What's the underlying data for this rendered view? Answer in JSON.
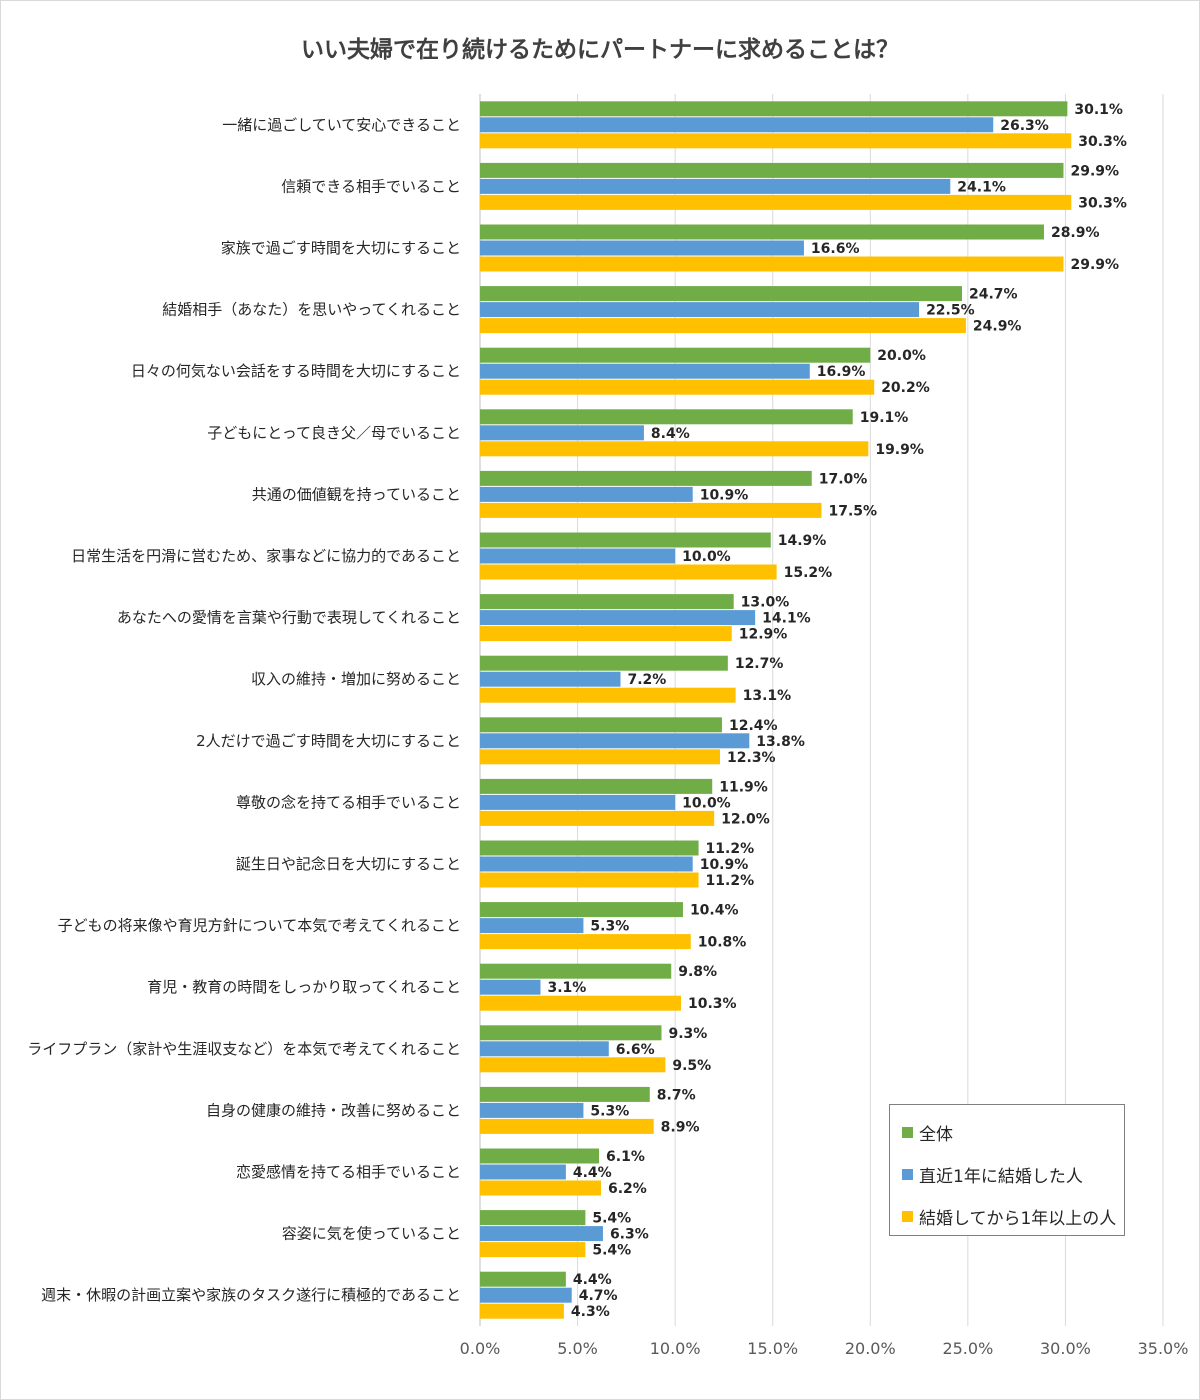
{
  "chart_data": {
    "type": "bar",
    "orientation": "horizontal",
    "title": "いい夫婦で在り続けるためにパートナーに求めることは？",
    "categories": [
      "一緒に過ごしていて安心できること",
      "信頼できる相手でいること",
      "家族で過ごす時間を大切にすること",
      "結婚相手（あなた）を思いやってくれること",
      "日々の何気ない会話をする時間を大切にすること",
      "子どもにとって良き父／母でいること",
      "共通の価値観を持っていること",
      "日常生活を円滑に営むため、家事などに協力的であること",
      "あなたへの愛情を言葉や行動で表現してくれること",
      "収入の維持・増加に努めること",
      "2人だけで過ごす時間を大切にすること",
      "尊敬の念を持てる相手でいること",
      "誕生日や記念日を大切にすること",
      "子どもの将来像や育児方針について本気で考えてくれること",
      "育児・教育の時間をしっかり取ってくれること",
      "ライフプラン（家計や生涯収支など）を本気で考えてくれること",
      "自身の健康の維持・改善に努めること",
      "恋愛感情を持てる相手でいること",
      "容姿に気を使っていること",
      "週末・休暇の計画立案や家族のタスク遂行に積極的であること"
    ],
    "series": [
      {
        "name": "全体",
        "color": "#70ad47",
        "values": [
          30.1,
          29.9,
          28.9,
          24.7,
          20.0,
          19.1,
          17.0,
          14.9,
          13.0,
          12.7,
          12.4,
          11.9,
          11.2,
          10.4,
          9.8,
          9.3,
          8.7,
          6.1,
          5.4,
          4.4
        ]
      },
      {
        "name": "直近1年に結婚した人",
        "color": "#5b9bd5",
        "values": [
          26.3,
          24.1,
          16.6,
          22.5,
          16.9,
          8.4,
          10.9,
          10.0,
          14.1,
          7.2,
          13.8,
          10.0,
          10.9,
          5.3,
          3.1,
          6.6,
          5.3,
          4.4,
          6.3,
          4.7
        ]
      },
      {
        "name": "結婚してから1年以上の人",
        "color": "#ffc000",
        "values": [
          30.3,
          30.3,
          29.9,
          24.9,
          20.2,
          19.9,
          17.5,
          15.2,
          12.9,
          13.1,
          12.3,
          12.0,
          11.2,
          10.8,
          10.3,
          9.5,
          8.9,
          6.2,
          5.4,
          4.3
        ]
      }
    ],
    "xlim": [
      0,
      35
    ],
    "xticks": [
      0,
      5,
      10,
      15,
      20,
      25,
      30,
      35
    ],
    "tick_suffix": "%",
    "value_suffix": "%",
    "grid": "vertical",
    "legend_position": "bottom-right"
  }
}
